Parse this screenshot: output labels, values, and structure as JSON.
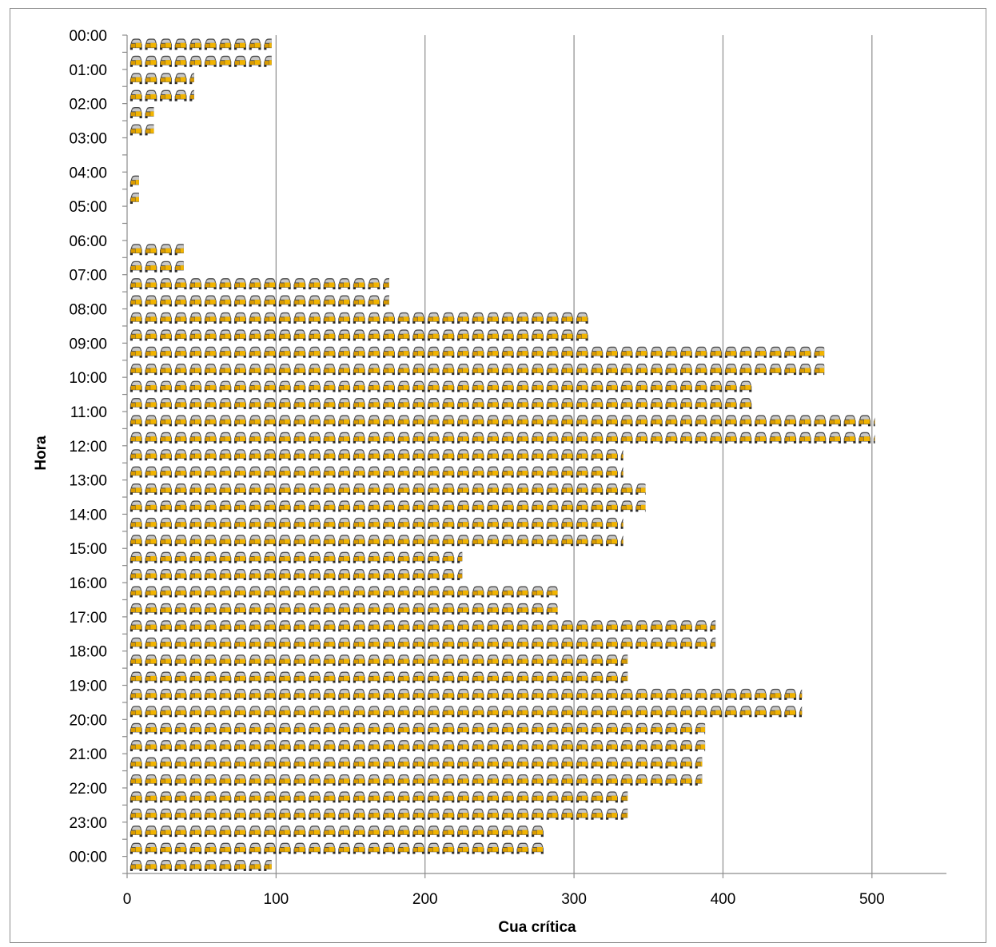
{
  "chart_data": {
    "type": "bar",
    "orientation": "horizontal",
    "pictograph": true,
    "title": "",
    "xlabel": "Cua crítica",
    "ylabel": "Hora",
    "xlim": [
      0,
      550
    ],
    "x_ticks": [
      0,
      100,
      200,
      300,
      400,
      500
    ],
    "y_tick_labels": [
      "00:00",
      "01:00",
      "02:00",
      "03:00",
      "04:00",
      "05:00",
      "06:00",
      "07:00",
      "08:00",
      "09:00",
      "10:00",
      "11:00",
      "12:00",
      "13:00",
      "14:00",
      "15:00",
      "16:00",
      "17:00",
      "18:00",
      "19:00",
      "20:00",
      "21:00",
      "22:00",
      "23:00",
      "00:00"
    ],
    "categories": [
      "00:00",
      "00:30",
      "01:00",
      "01:30",
      "02:00",
      "02:30",
      "03:00",
      "03:30",
      "04:00",
      "04:30",
      "05:00",
      "05:30",
      "06:00",
      "06:30",
      "07:00",
      "07:30",
      "08:00",
      "08:30",
      "09:00",
      "09:30",
      "10:00",
      "10:30",
      "11:00",
      "11:30",
      "12:00",
      "12:30",
      "13:00",
      "13:30",
      "14:00",
      "14:30",
      "15:00",
      "15:30",
      "16:00",
      "16:30",
      "17:00",
      "17:30",
      "18:00",
      "18:30",
      "19:00",
      "19:30",
      "20:00",
      "20:30",
      "21:00",
      "21:30",
      "22:00",
      "22:30",
      "23:00",
      "23:30",
      "00:00"
    ],
    "values": [
      97,
      97,
      45,
      45,
      18,
      18,
      0,
      0,
      8,
      8,
      0,
      0,
      38,
      38,
      176,
      176,
      310,
      310,
      468,
      468,
      420,
      420,
      502,
      502,
      333,
      333,
      348,
      348,
      333,
      333,
      225,
      225,
      289,
      289,
      395,
      395,
      336,
      336,
      453,
      453,
      388,
      388,
      386,
      386,
      336,
      336,
      280,
      280,
      97
    ],
    "grid_x": true,
    "grid_y": false,
    "legend": "none",
    "colors": {
      "icon_body": "#f2b400",
      "icon_dark": "#4a4a4a",
      "icon_light": "#c8c8c8",
      "grid": "#8c8c8c",
      "axis": "#8c8c8c"
    },
    "icon": "car-icon"
  }
}
